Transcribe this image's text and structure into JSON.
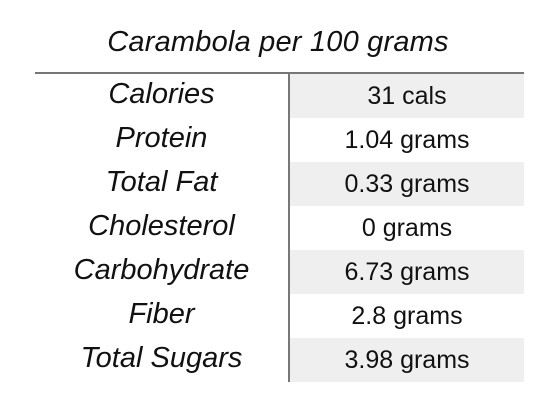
{
  "table": {
    "title": "Carambola per 100 grams",
    "rows": [
      {
        "label": "Calories",
        "value": "31 cals"
      },
      {
        "label": "Protein",
        "value": "1.04 grams"
      },
      {
        "label": "Total Fat",
        "value": "0.33 grams"
      },
      {
        "label": "Cholesterol",
        "value": "0 grams"
      },
      {
        "label": "Carbohydrate",
        "value": "6.73 grams"
      },
      {
        "label": "Fiber",
        "value": "2.8 grams"
      },
      {
        "label": "Total Sugars",
        "value": "3.98 grams"
      }
    ]
  },
  "colors": {
    "rule": "#777777",
    "shade": "#efefef",
    "text": "#111111"
  }
}
